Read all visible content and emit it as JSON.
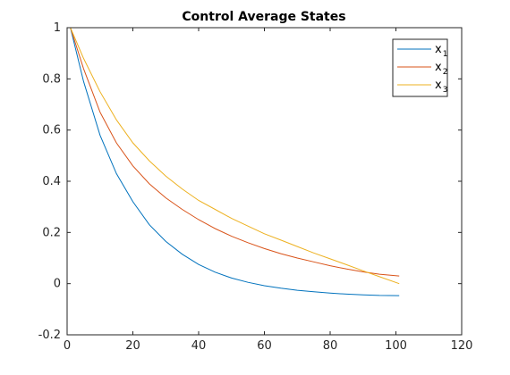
{
  "chart_data": {
    "type": "line",
    "title": "Control Average States",
    "xlabel": "",
    "ylabel": "",
    "xlim": [
      0,
      120
    ],
    "ylim": [
      -0.2,
      1
    ],
    "xticks": [
      0,
      20,
      40,
      60,
      80,
      100,
      120
    ],
    "yticks": [
      -0.2,
      0,
      0.2,
      0.4,
      0.6,
      0.8,
      1
    ],
    "grid": false,
    "legend_position": "top-right",
    "x": [
      1,
      5,
      10,
      15,
      20,
      25,
      30,
      35,
      40,
      45,
      50,
      55,
      60,
      65,
      70,
      75,
      80,
      85,
      90,
      95,
      101
    ],
    "series": [
      {
        "name": "x",
        "subscript": "1",
        "color": "#0072BD",
        "values": [
          1.0,
          0.79,
          0.58,
          0.43,
          0.32,
          0.23,
          0.165,
          0.115,
          0.075,
          0.045,
          0.022,
          0.005,
          -0.008,
          -0.018,
          -0.026,
          -0.032,
          -0.037,
          -0.041,
          -0.044,
          -0.046,
          -0.047
        ]
      },
      {
        "name": "x",
        "subscript": "2",
        "color": "#D95319",
        "values": [
          1.0,
          0.84,
          0.67,
          0.55,
          0.46,
          0.39,
          0.335,
          0.29,
          0.25,
          0.215,
          0.185,
          0.16,
          0.137,
          0.117,
          0.1,
          0.085,
          0.07,
          0.057,
          0.046,
          0.037,
          0.03
        ]
      },
      {
        "name": "x",
        "subscript": "3",
        "color": "#EDB120",
        "values": [
          1.0,
          0.88,
          0.75,
          0.64,
          0.55,
          0.48,
          0.42,
          0.37,
          0.325,
          0.29,
          0.255,
          0.225,
          0.195,
          0.17,
          0.145,
          0.12,
          0.097,
          0.074,
          0.05,
          0.027,
          0.0
        ]
      }
    ]
  }
}
